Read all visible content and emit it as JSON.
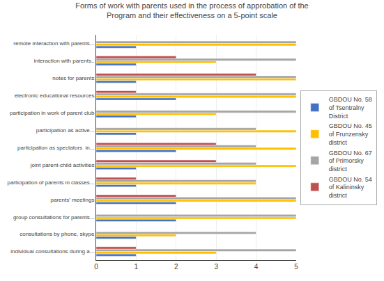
{
  "chart_data": {
    "type": "bar",
    "orientation": "horizontal",
    "title": "Forms of work with parents used in the process of approbation of the\nProgram and their effectiveness on a 5-point scale",
    "categories": [
      "individual consultations during a...",
      "consultations by phone, skype",
      "group consultations for parents...",
      "parents' meetings",
      "participation of parents in classes...",
      "joint parent-child activities",
      "participation as spectators  in...",
      "participation as active...",
      "participation in work of parent club",
      "electronic educational resources",
      "notes for parents",
      "interaction with parents..",
      "remote interaction with parents..."
    ],
    "series": [
      {
        "name": "GBDOU No. 58\nof Tsentralny\nDistrict",
        "color": "#4472C4",
        "values": [
          1,
          1,
          2,
          2,
          1,
          1,
          2,
          1,
          1,
          2,
          1,
          1,
          1
        ]
      },
      {
        "name": "GBDOU No. 45\nof Frunzensky\ndistrict",
        "color": "#FFC000",
        "values": [
          3,
          2,
          5,
          5,
          4,
          5,
          5,
          5,
          3,
          5,
          5,
          3,
          5
        ]
      },
      {
        "name": "GBDOU No. 67\nof Primorsky\ndistrict",
        "color": "#A5A5A5",
        "values": [
          5,
          4,
          5,
          5,
          4,
          4,
          4,
          4,
          5,
          5,
          5,
          5,
          5
        ]
      },
      {
        "name": "GBDOU No. 54\nof Kalininsky\ndistrict",
        "color": "#C0504D",
        "values": [
          1,
          0,
          0,
          2,
          1,
          3,
          3,
          0,
          0,
          1,
          4,
          2,
          0
        ]
      }
    ],
    "xlim": [
      0,
      5
    ],
    "xticks": [
      0,
      1,
      2,
      3,
      4,
      5
    ],
    "grid": true,
    "legend": "right"
  }
}
